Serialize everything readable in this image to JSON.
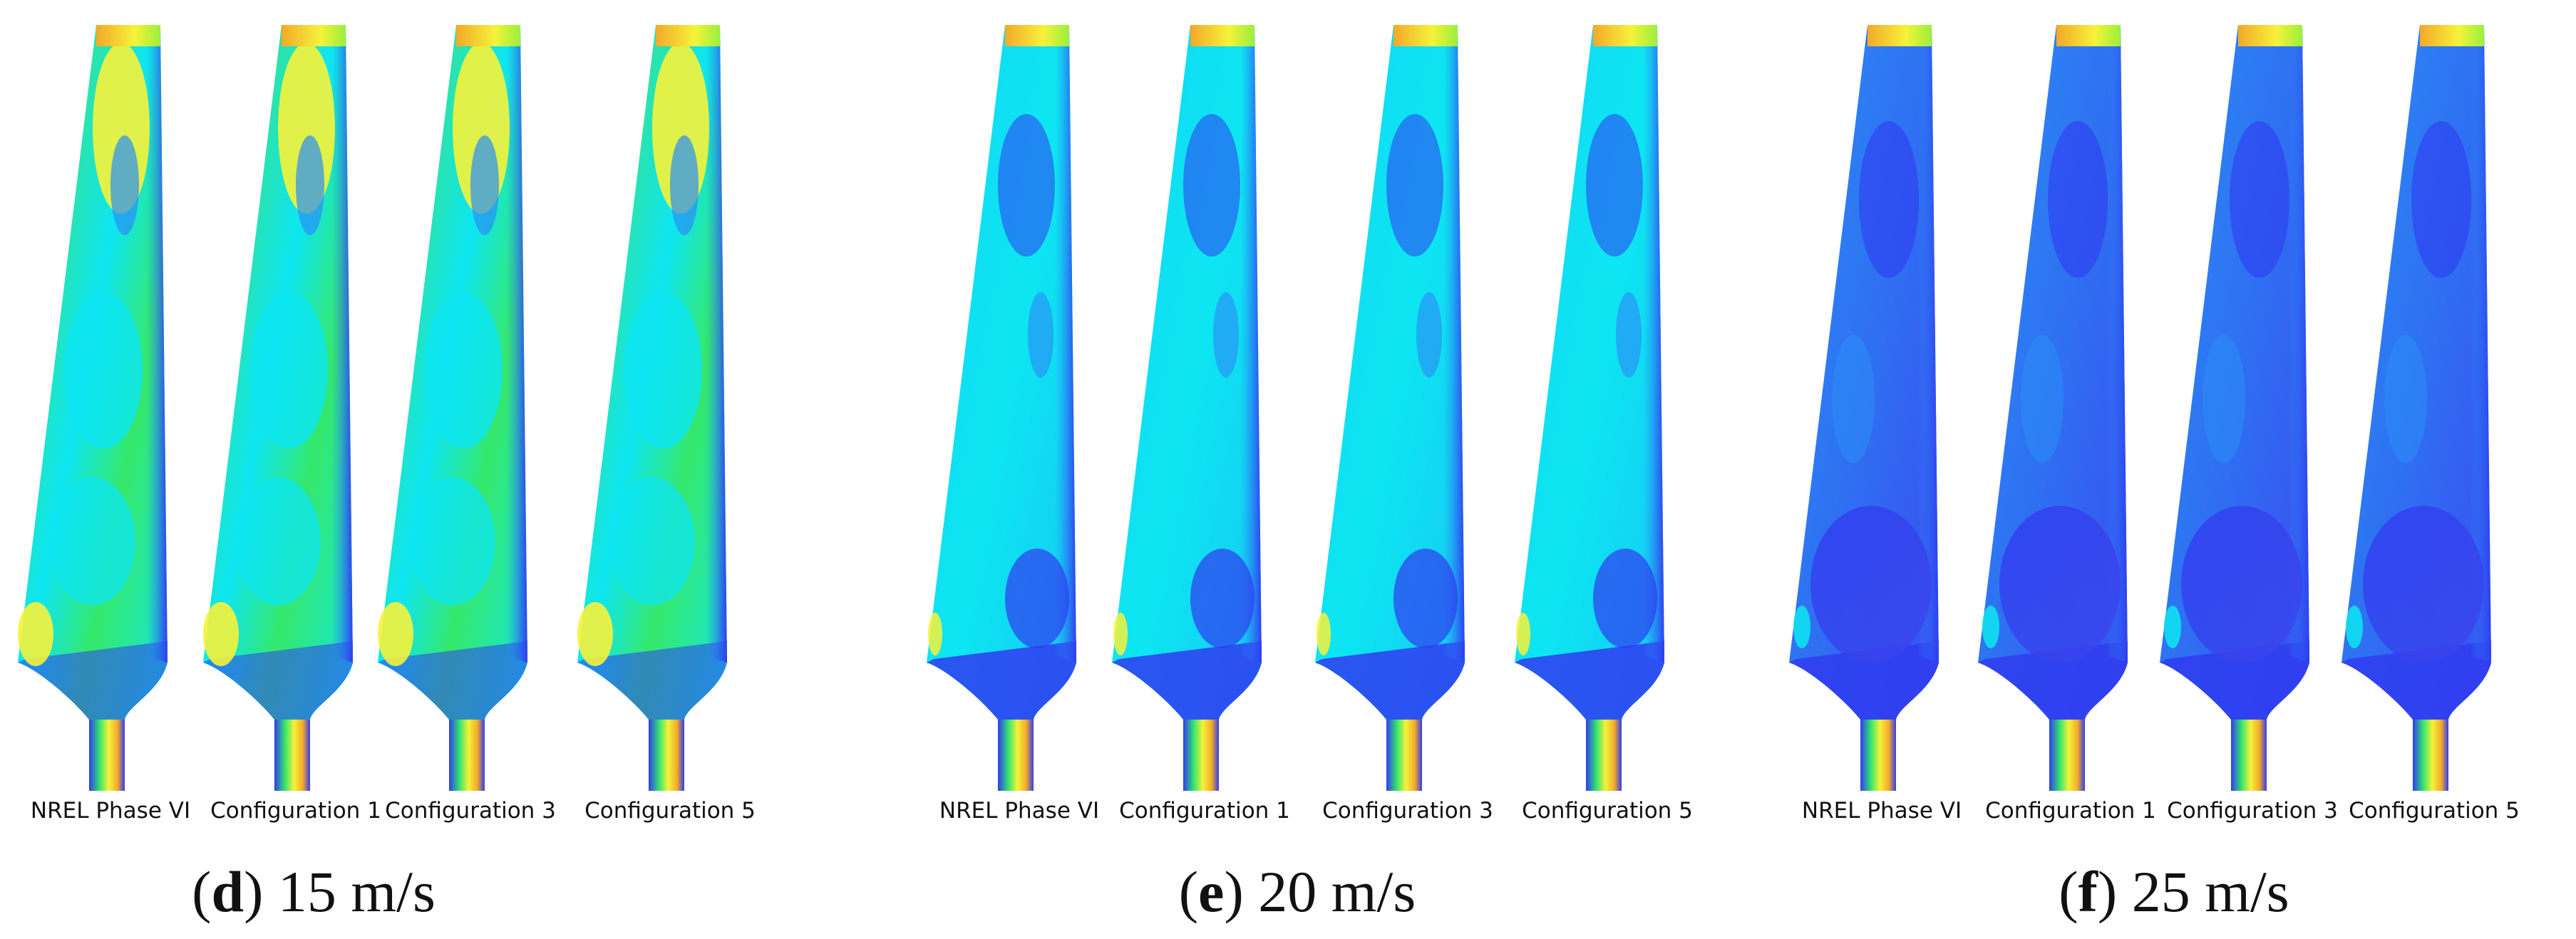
{
  "panels": [
    {
      "letter": "d",
      "speed_text": "15 m/s",
      "blades": [
        {
          "label": "NREL Phase VI",
          "theme": "high"
        },
        {
          "label": "Configuration 1",
          "theme": "high"
        },
        {
          "label": "Configuration 3",
          "theme": "high"
        },
        {
          "label": "Configuration 5",
          "theme": "high"
        }
      ]
    },
    {
      "letter": "e",
      "speed_text": "20 m/s",
      "blades": [
        {
          "label": "NREL Phase VI",
          "theme": "mid"
        },
        {
          "label": "Configuration 1",
          "theme": "mid"
        },
        {
          "label": "Configuration 3",
          "theme": "mid"
        },
        {
          "label": "Configuration 5",
          "theme": "mid"
        }
      ]
    },
    {
      "letter": "f",
      "speed_text": "25 m/s",
      "blades": [
        {
          "label": "NREL Phase VI",
          "theme": "low"
        },
        {
          "label": "Configuration 1",
          "theme": "low"
        },
        {
          "label": "Configuration 3",
          "theme": "low"
        },
        {
          "label": "Configuration 5",
          "theme": "low"
        }
      ]
    }
  ],
  "colormap": {
    "blue": "#2f3cf0",
    "light_blue": "#2a8ff5",
    "cyan": "#0de6f2",
    "green": "#35e86a",
    "lime": "#9bf03c",
    "yellow": "#f6f23a",
    "orange": "#f3a92a",
    "white": "#ffffff"
  }
}
